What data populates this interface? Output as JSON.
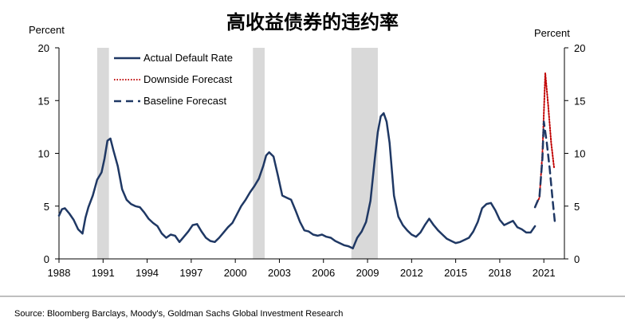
{
  "chart_data": {
    "type": "line",
    "title": "高收益债券的违约率",
    "ylabel_left": "Percent",
    "ylabel_right": "Percent",
    "xlim": [
      1988.0,
      2022.4
    ],
    "ylim": [
      0,
      20
    ],
    "x_ticks": [
      1988,
      1991,
      1994,
      1997,
      2000,
      2003,
      2006,
      2009,
      2012,
      2015,
      2018,
      2021
    ],
    "y_ticks": [
      0,
      5,
      10,
      15,
      20
    ],
    "grid": false,
    "legend_position": "top-left",
    "recessions": [
      [
        1990.6,
        1991.4
      ],
      [
        2001.2,
        2002.0
      ],
      [
        2007.9,
        2009.7
      ]
    ],
    "series": [
      {
        "name": "Actual Default Rate",
        "style": "solid",
        "color": "#1f3864",
        "x": [
          1988.0,
          1988.2,
          1988.4,
          1988.7,
          1989.0,
          1989.3,
          1989.6,
          1989.8,
          1990.0,
          1990.3,
          1990.6,
          1990.9,
          1991.1,
          1991.3,
          1991.5,
          1991.7,
          1992.0,
          1992.3,
          1992.6,
          1992.9,
          1993.2,
          1993.5,
          1993.8,
          1994.1,
          1994.4,
          1994.7,
          1995.0,
          1995.3,
          1995.6,
          1995.9,
          1996.2,
          1996.5,
          1996.8,
          1997.1,
          1997.4,
          1997.7,
          1998.0,
          1998.3,
          1998.6,
          1998.9,
          1999.2,
          1999.5,
          1999.8,
          2000.1,
          2000.4,
          2000.7,
          2001.0,
          2001.3,
          2001.6,
          2001.9,
          2002.1,
          2002.3,
          2002.6,
          2002.9,
          2003.2,
          2003.5,
          2003.8,
          2004.1,
          2004.4,
          2004.7,
          2005.0,
          2005.3,
          2005.6,
          2005.9,
          2006.2,
          2006.5,
          2006.8,
          2007.1,
          2007.4,
          2007.7,
          2008.0,
          2008.3,
          2008.6,
          2008.9,
          2009.2,
          2009.5,
          2009.7,
          2009.9,
          2010.1,
          2010.3,
          2010.5,
          2010.8,
          2011.1,
          2011.4,
          2011.7,
          2012.0,
          2012.3,
          2012.6,
          2012.9,
          2013.2,
          2013.5,
          2013.8,
          2014.1,
          2014.4,
          2014.7,
          2015.0,
          2015.3,
          2015.6,
          2015.9,
          2016.2,
          2016.5,
          2016.8,
          2017.1,
          2017.4,
          2017.7,
          2018.0,
          2018.3,
          2018.6,
          2018.9,
          2019.2,
          2019.5,
          2019.8,
          2020.1,
          2020.4
        ],
        "y": [
          4.1,
          4.7,
          4.8,
          4.3,
          3.7,
          2.8,
          2.4,
          3.9,
          4.9,
          6.0,
          7.5,
          8.2,
          9.5,
          11.2,
          11.4,
          10.3,
          8.8,
          6.6,
          5.6,
          5.2,
          5.0,
          4.9,
          4.4,
          3.8,
          3.4,
          3.1,
          2.4,
          2.0,
          2.3,
          2.2,
          1.6,
          2.1,
          2.6,
          3.2,
          3.3,
          2.6,
          2.0,
          1.7,
          1.6,
          2.0,
          2.5,
          3.0,
          3.4,
          4.2,
          5.0,
          5.6,
          6.3,
          6.9,
          7.6,
          8.8,
          9.8,
          10.1,
          9.7,
          7.9,
          6.0,
          5.8,
          5.6,
          4.6,
          3.5,
          2.7,
          2.6,
          2.3,
          2.2,
          2.3,
          2.1,
          2.0,
          1.7,
          1.5,
          1.3,
          1.2,
          1.0,
          2.0,
          2.6,
          3.5,
          5.5,
          9.5,
          12.0,
          13.5,
          13.8,
          13.0,
          11.0,
          6.0,
          4.0,
          3.2,
          2.7,
          2.3,
          2.1,
          2.5,
          3.2,
          3.8,
          3.2,
          2.7,
          2.3,
          1.9,
          1.7,
          1.5,
          1.6,
          1.8,
          2.0,
          2.6,
          3.5,
          4.8,
          5.2,
          5.3,
          4.6,
          3.7,
          3.2,
          3.4,
          3.6,
          3.0,
          2.8,
          2.5,
          2.5,
          3.1
        ]
      },
      {
        "name": "Downside Forecast",
        "style": "dotted",
        "color": "#c00000",
        "x": [
          2020.4,
          2020.7,
          2020.9,
          2021.1,
          2021.3,
          2021.5,
          2021.7
        ],
        "y": [
          4.9,
          5.8,
          10.0,
          17.6,
          14.5,
          11.0,
          8.6
        ]
      },
      {
        "name": "Baseline Forecast",
        "style": "dashed",
        "color": "#1f3864",
        "x": [
          2020.4,
          2020.7,
          2020.9,
          2021.0,
          2021.2,
          2021.4,
          2021.6,
          2021.75
        ],
        "y": [
          4.9,
          5.9,
          9.5,
          13.0,
          11.0,
          8.5,
          5.5,
          3.5
        ]
      }
    ],
    "source": "Source: Bloomberg Barclays, Moody's, Goldman Sachs Global Investment Research"
  }
}
